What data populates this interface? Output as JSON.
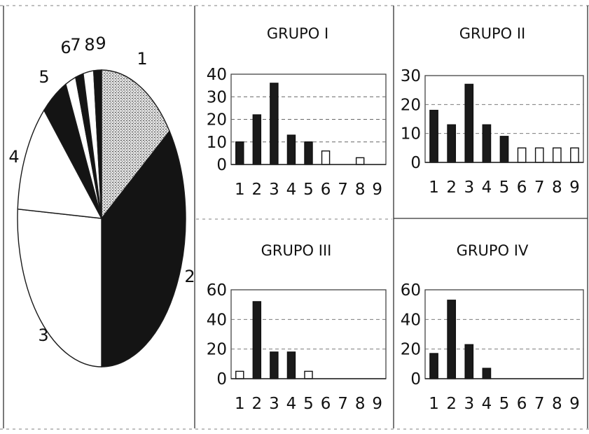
{
  "chart_data": [
    {
      "type": "pie",
      "labels": [
        "1",
        "2",
        "3",
        "4",
        "5",
        "6",
        "7",
        "8",
        "9"
      ],
      "values": [
        15,
        35,
        26,
        12,
        5,
        2,
        1.5,
        2,
        1.5
      ],
      "fills": [
        "dotted",
        "black",
        "white",
        "white",
        "black",
        "white",
        "black",
        "white",
        "black"
      ]
    },
    {
      "type": "bar",
      "title": "GRUPO I",
      "categories": [
        "1",
        "2",
        "3",
        "4",
        "5",
        "6",
        "7",
        "8",
        "9"
      ],
      "values": [
        10,
        22,
        36,
        13,
        10,
        6,
        0,
        3,
        0
      ],
      "ylim": [
        0,
        40
      ],
      "yticks": [
        "0",
        "10",
        "20",
        "30",
        "40"
      ],
      "grid": true
    },
    {
      "type": "bar",
      "title": "GRUPO II",
      "categories": [
        "1",
        "2",
        "3",
        "4",
        "5",
        "6",
        "7",
        "8",
        "9"
      ],
      "values": [
        18,
        13,
        27,
        13,
        9,
        5,
        5,
        5,
        5
      ],
      "ylim": [
        0,
        30
      ],
      "yticks": [
        "0",
        "10",
        "20",
        "30"
      ],
      "grid": true
    },
    {
      "type": "bar",
      "title": "GRUPO III",
      "categories": [
        "1",
        "2",
        "3",
        "4",
        "5",
        "6",
        "7",
        "8",
        "9"
      ],
      "values": [
        5,
        52,
        18,
        18,
        5,
        0,
        0,
        0,
        0
      ],
      "ylim": [
        0,
        60
      ],
      "yticks": [
        "0",
        "20",
        "40",
        "60"
      ],
      "grid": true
    },
    {
      "type": "bar",
      "title": "GRUPO IV",
      "categories": [
        "1",
        "2",
        "3",
        "4",
        "5",
        "6",
        "7",
        "8",
        "9"
      ],
      "values": [
        17,
        53,
        23,
        7,
        0,
        0,
        0,
        0,
        0
      ],
      "ylim": [
        0,
        60
      ],
      "yticks": [
        "0",
        "20",
        "40",
        "60"
      ],
      "grid": true
    }
  ],
  "colors": {
    "bar_fill": "#1a1a1a",
    "bar_stroke": "#111111",
    "axis": "#222222",
    "grid": "#666666",
    "dotted_fill": "#bdbdbd"
  }
}
